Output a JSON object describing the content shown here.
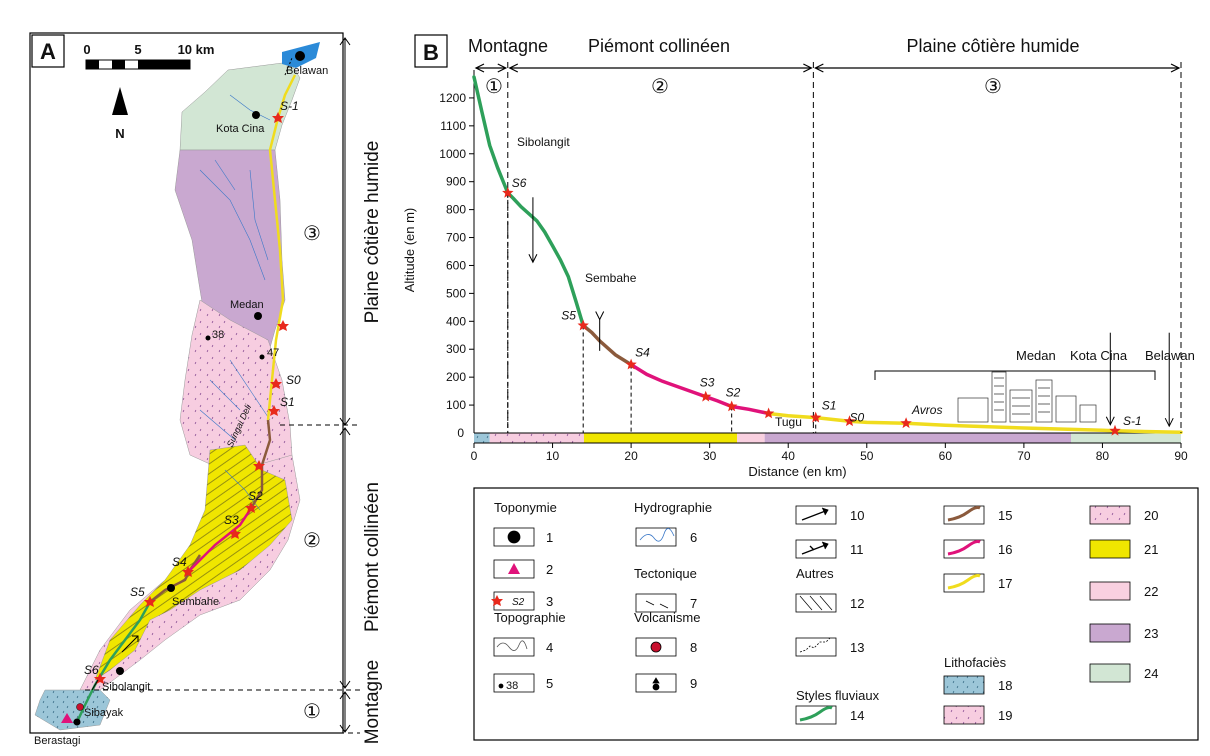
{
  "panel_a": {
    "label": "A",
    "scale": {
      "t0": "0",
      "t5": "5",
      "t10": "10 km"
    },
    "north": "N",
    "places": {
      "belawan": "Belawan",
      "kota_cina": "Kota Cina",
      "medan": "Medan",
      "sembahe": "Sembahe",
      "sibolangit": "Sibolangit",
      "sibayak": "Sibayak",
      "berastagi": "Berastagi",
      "p38": "38",
      "p47": "47"
    },
    "sites": {
      "sm1": "S-1",
      "s0": "S0",
      "s1": "S1",
      "s2": "S2",
      "s3": "S3",
      "s4": "S4",
      "s5": "S5",
      "s6": "S6"
    },
    "river": "Sungai Deli",
    "zones": [
      {
        "num": "③",
        "name": "Plaine côtière humide"
      },
      {
        "num": "②",
        "name": "Piémont collinéen"
      },
      {
        "num": "①",
        "name": "Montagne"
      }
    ]
  },
  "panel_b": {
    "label": "B",
    "zones": [
      {
        "num": "①",
        "name": "Montagne"
      },
      {
        "num": "②",
        "name": "Piémont collinéen"
      },
      {
        "num": "③",
        "name": "Plaine côtière humide"
      }
    ],
    "place_labels": {
      "sibolangit": "Sibolangit",
      "sembahe": "Sembahe",
      "tugu": "Tugu",
      "avros": "Avros",
      "medan": "Medan",
      "kota_cina": "Kota Cina",
      "belawan": "Belawan"
    }
  },
  "chart_data": {
    "type": "line",
    "xlabel": "Distance (en km)",
    "ylabel": "Altitude (en m)",
    "xlim": [
      0,
      90
    ],
    "ylim": [
      0,
      1300
    ],
    "xticks": [
      0,
      10,
      20,
      30,
      40,
      50,
      60,
      70,
      80,
      90
    ],
    "yticks": [
      0,
      100,
      200,
      300,
      400,
      500,
      600,
      700,
      800,
      900,
      1000,
      1100,
      1200
    ],
    "segments": [
      {
        "style": "14",
        "color": "#2ea05a",
        "points": [
          [
            0,
            1275
          ],
          [
            1,
            1150
          ],
          [
            2,
            1030
          ],
          [
            3,
            950
          ],
          [
            4.3,
            860
          ],
          [
            5,
            840
          ],
          [
            6,
            810
          ],
          [
            8,
            760
          ],
          [
            9,
            720
          ],
          [
            10,
            670
          ],
          [
            11,
            620
          ],
          [
            12,
            560
          ],
          [
            13,
            470
          ],
          [
            13.9,
            385
          ]
        ]
      },
      {
        "style": "15",
        "color": "#8b5a3c",
        "points": [
          [
            13.9,
            385
          ],
          [
            15,
            360
          ],
          [
            16,
            330
          ],
          [
            18,
            280
          ],
          [
            20,
            245
          ]
        ]
      },
      {
        "style": "16",
        "color": "#e0127a",
        "points": [
          [
            20,
            245
          ],
          [
            22,
            210
          ],
          [
            24,
            185
          ],
          [
            26,
            165
          ],
          [
            28,
            145
          ],
          [
            29.5,
            130
          ],
          [
            31,
            115
          ],
          [
            32.8,
            95
          ],
          [
            35,
            85
          ],
          [
            37.5,
            70
          ]
        ]
      },
      {
        "style": "17",
        "color": "#f0dc1e",
        "points": [
          [
            37.5,
            70
          ],
          [
            40,
            62
          ],
          [
            43.5,
            55
          ],
          [
            47.8,
            42
          ],
          [
            50,
            38
          ],
          [
            55,
            35
          ],
          [
            60,
            28
          ],
          [
            70,
            18
          ],
          [
            80,
            10
          ],
          [
            81.6,
            8
          ],
          [
            86,
            5
          ],
          [
            90,
            3
          ]
        ]
      }
    ],
    "sites": [
      {
        "name": "S6",
        "x": 4.3,
        "y": 860
      },
      {
        "name": "S5",
        "x": 13.9,
        "y": 385
      },
      {
        "name": "S4",
        "x": 20,
        "y": 245
      },
      {
        "name": "S3",
        "x": 29.5,
        "y": 130
      },
      {
        "name": "S2",
        "x": 32.8,
        "y": 95
      },
      {
        "name": "Tugu",
        "x": 37.5,
        "y": 70
      },
      {
        "name": "S1",
        "x": 43.5,
        "y": 55
      },
      {
        "name": "S0",
        "x": 47.8,
        "y": 42
      },
      {
        "name": "Avros",
        "x": 55,
        "y": 35
      },
      {
        "name": "S-1",
        "x": 81.6,
        "y": 8
      }
    ],
    "lithology_bar": [
      {
        "from": 0,
        "to": 2,
        "class": "18"
      },
      {
        "from": 2,
        "to": 14,
        "class": "20"
      },
      {
        "from": 14,
        "to": 33.5,
        "class": "21"
      },
      {
        "from": 33.5,
        "to": 37,
        "class": "22"
      },
      {
        "from": 37,
        "to": 76,
        "class": "23"
      },
      {
        "from": 76,
        "to": 90,
        "class": "24"
      }
    ]
  },
  "legend": {
    "headers": {
      "toponymie": "Toponymie",
      "topographie": "Topographie",
      "hydrographie": "Hydrographie",
      "tectonique": "Tectonique",
      "volcanisme": "Volcanisme",
      "autres": "Autres",
      "styles_fluviaux": "Styles fluviaux",
      "lithofacies": "Lithofaciès"
    },
    "sample_labels": {
      "s2": "S2",
      "n38": "38"
    },
    "numbers": [
      "1",
      "2",
      "3",
      "4",
      "5",
      "6",
      "7",
      "8",
      "9",
      "10",
      "11",
      "12",
      "13",
      "14",
      "15",
      "16",
      "17",
      "18",
      "19",
      "20",
      "21",
      "22",
      "23",
      "24"
    ],
    "colors": {
      "18": "#9cc6d8",
      "19": "#f7cde0",
      "20": "#f7cde0",
      "21": "#f0e600",
      "22": "#f9d0e0",
      "23": "#c9a8d0",
      "24": "#d2e6d4",
      "14": "#2ea05a",
      "15": "#8b5a3c",
      "16": "#e0127a",
      "17": "#f0dc1e"
    }
  }
}
